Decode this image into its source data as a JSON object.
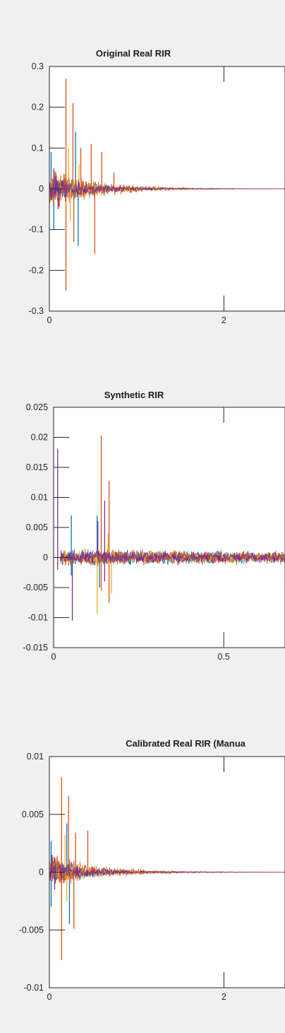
{
  "figure": {
    "background": "#f0f0f0",
    "series_colors": [
      "#0072bd",
      "#d95319",
      "#edb120",
      "#7e2f8e"
    ],
    "axes_color": "#262626"
  },
  "chart_data": [
    {
      "type": "line",
      "title": "Original Real RIR",
      "xlabel": "",
      "ylabel": "",
      "xlim": [
        0,
        2.7
      ],
      "ylim": [
        -0.3,
        0.3
      ],
      "xticks": [
        0,
        2
      ],
      "xtick_labels": [
        "0",
        "2"
      ],
      "yticks": [
        -0.3,
        -0.2,
        -0.1,
        0,
        0.1,
        0.2,
        0.3
      ],
      "ytick_labels": [
        "-0.3",
        "-0.2",
        "-0.1",
        "0",
        "0.1",
        "0.2",
        "0.3"
      ],
      "grid": false,
      "series": [
        {
          "color": "#0072bd",
          "onset": 0.0,
          "env_amp": 0.035,
          "decay_time": 0.5,
          "spikes": [
            [
              0.02,
              0.09
            ],
            [
              0.05,
              -0.1
            ],
            [
              0.3,
              0.14
            ],
            [
              0.33,
              -0.14
            ]
          ]
        },
        {
          "color": "#d95319",
          "onset": 0.0,
          "env_amp": 0.045,
          "decay_time": 0.55,
          "spikes": [
            [
              0.19,
              0.27
            ],
            [
              0.19,
              -0.25
            ],
            [
              0.27,
              0.21
            ],
            [
              0.28,
              -0.13
            ],
            [
              0.36,
              0.1
            ],
            [
              0.48,
              0.11
            ],
            [
              0.52,
              -0.16
            ],
            [
              0.6,
              0.09
            ],
            [
              0.74,
              0.04
            ]
          ]
        },
        {
          "color": "#edb120",
          "onset": 0.0,
          "env_amp": 0.03,
          "decay_time": 0.5,
          "spikes": [
            [
              0.22,
              0.1
            ],
            [
              0.24,
              -0.08
            ],
            [
              0.34,
              0.06
            ]
          ]
        },
        {
          "color": "#7e2f8e",
          "onset": 0.0,
          "env_amp": 0.03,
          "decay_time": 0.45,
          "spikes": [
            [
              0.05,
              0.05
            ],
            [
              0.1,
              -0.05
            ]
          ]
        }
      ]
    },
    {
      "type": "line",
      "title": "Synthetic RIR",
      "xlabel": "",
      "ylabel": "",
      "xlim": [
        0,
        0.68
      ],
      "ylim": [
        -0.015,
        0.025
      ],
      "xticks": [
        0,
        0.5
      ],
      "xtick_labels": [
        "0",
        "0.5"
      ],
      "yticks": [
        -0.015,
        -0.01,
        -0.005,
        0,
        0.005,
        0.01,
        0.015,
        0.02,
        0.025
      ],
      "ytick_labels": [
        "-0.015",
        "-0.01",
        "-0.005",
        "0",
        "0.005",
        "0.01",
        "0.015",
        "0.02",
        "0.025"
      ],
      "grid": false,
      "series": [
        {
          "color": "#0072bd",
          "onset": 0.02,
          "env_amp": 0.0011,
          "decay_time": 2.0,
          "spikes": [
            [
              0.052,
              0.007
            ],
            [
              0.052,
              -0.003
            ],
            [
              0.128,
              0.007
            ],
            [
              0.135,
              -0.005
            ]
          ]
        },
        {
          "color": "#d95319",
          "onset": 0.02,
          "env_amp": 0.0012,
          "decay_time": 2.0,
          "spikes": [
            [
              0.14,
              0.0203
            ],
            [
              0.14,
              -0.0055
            ],
            [
              0.163,
              0.0128
            ],
            [
              0.163,
              -0.0075
            ]
          ]
        },
        {
          "color": "#edb120",
          "onset": 0.02,
          "env_amp": 0.0009,
          "decay_time": 2.0,
          "spikes": [
            [
              0.128,
              -0.0094
            ],
            [
              0.16,
              0.004
            ],
            [
              0.17,
              -0.006
            ]
          ]
        },
        {
          "color": "#7e2f8e",
          "onset": 0.02,
          "env_amp": 0.0009,
          "decay_time": 2.0,
          "spikes": [
            [
              0.012,
              0.0181
            ],
            [
              0.012,
              -0.002
            ],
            [
              0.055,
              -0.0105
            ],
            [
              0.13,
              0.006
            ],
            [
              0.15,
              0.0095
            ],
            [
              0.15,
              -0.004
            ]
          ]
        }
      ]
    },
    {
      "type": "line",
      "title": "Calibrated Real RIR (Manua",
      "xlabel": "",
      "ylabel": "",
      "xlim": [
        0,
        2.7
      ],
      "ylim": [
        -0.01,
        0.01
      ],
      "xticks": [
        0,
        2
      ],
      "xtick_labels": [
        "0",
        "2"
      ],
      "yticks": [
        -0.01,
        -0.005,
        0,
        0.005,
        0.01
      ],
      "ytick_labels": [
        "-0.01",
        "-0.005",
        "0",
        "0.005",
        "0.01"
      ],
      "grid": false,
      "series": [
        {
          "color": "#0072bd",
          "onset": 0.0,
          "env_amp": 0.0011,
          "decay_time": 0.5,
          "spikes": [
            [
              0.02,
              0.0027
            ],
            [
              0.02,
              -0.003
            ],
            [
              0.2,
              0.0042
            ],
            [
              0.23,
              -0.0045
            ]
          ]
        },
        {
          "color": "#d95319",
          "onset": 0.0,
          "env_amp": 0.0014,
          "decay_time": 0.55,
          "spikes": [
            [
              0.14,
              0.0082
            ],
            [
              0.14,
              -0.0076
            ],
            [
              0.22,
              0.0066
            ],
            [
              0.28,
              -0.0049
            ],
            [
              0.3,
              0.0034
            ],
            [
              0.44,
              0.0036
            ]
          ]
        },
        {
          "color": "#edb120",
          "onset": 0.0,
          "env_amp": 0.0009,
          "decay_time": 0.5,
          "spikes": [
            [
              0.18,
              0.0032
            ],
            [
              0.2,
              -0.0025
            ]
          ]
        },
        {
          "color": "#7e2f8e",
          "onset": 0.0,
          "env_amp": 0.0009,
          "decay_time": 0.45,
          "spikes": [
            [
              0.03,
              0.0015
            ],
            [
              0.06,
              -0.0015
            ]
          ]
        }
      ]
    }
  ]
}
